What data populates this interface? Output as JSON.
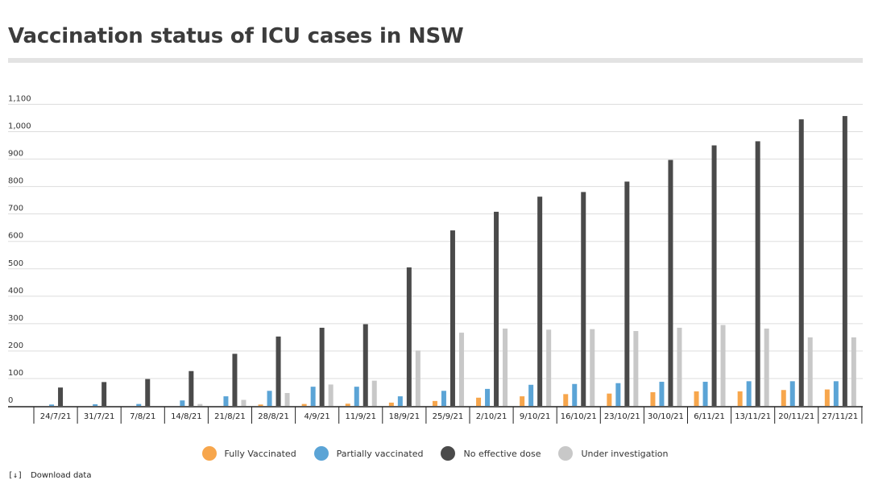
{
  "title": "Vaccination status of ICU cases in NSW",
  "download_label": "Download data",
  "download_icon": "download-icon",
  "colors": {
    "Fully Vaccinated": "#f7a64c",
    "Partially vaccinated": "#5ba4d6",
    "No effective dose": "#4a4a4a",
    "Under investigation": "#c8c8c8"
  },
  "chart_data": {
    "type": "bar",
    "title": "Vaccination status of ICU cases in NSW",
    "xlabel": "",
    "ylabel": "",
    "ylim": [
      0,
      1100
    ],
    "yticks": [
      0,
      100,
      200,
      300,
      400,
      500,
      600,
      700,
      800,
      900,
      1000,
      1100
    ],
    "ytick_labels": [
      "0",
      "100",
      "200",
      "300",
      "400",
      "500",
      "600",
      "700",
      "800",
      "900",
      "1,000",
      "1,100"
    ],
    "grid": true,
    "legend_position": "bottom",
    "categories": [
      "24/7/21",
      "31/7/21",
      "7/8/21",
      "14/8/21",
      "21/8/21",
      "28/8/21",
      "4/9/21",
      "11/9/21",
      "18/9/21",
      "25/9/21",
      "2/10/21",
      "9/10/21",
      "16/10/21",
      "23/10/21",
      "30/10/21",
      "6/11/21",
      "13/11/21",
      "20/11/21",
      "27/11/21"
    ],
    "series": [
      {
        "name": "Fully Vaccinated",
        "values": [
          0,
          0,
          0,
          0,
          0,
          5,
          7,
          8,
          12,
          18,
          30,
          35,
          43,
          45,
          50,
          53,
          53,
          58,
          60
        ]
      },
      {
        "name": "Partially vaccinated",
        "values": [
          5,
          6,
          7,
          20,
          35,
          55,
          70,
          70,
          35,
          55,
          62,
          77,
          80,
          83,
          88,
          88,
          90,
          90,
          90
        ]
      },
      {
        "name": "No effective dose",
        "values": [
          67,
          87,
          98,
          127,
          190,
          253,
          285,
          298,
          505,
          640,
          708,
          763,
          780,
          818,
          897,
          950,
          965,
          1045,
          1057
        ]
      },
      {
        "name": "Under investigation",
        "values": [
          0,
          0,
          0,
          7,
          22,
          47,
          78,
          92,
          202,
          267,
          282,
          278,
          280,
          273,
          285,
          295,
          282,
          250,
          250
        ]
      }
    ]
  }
}
